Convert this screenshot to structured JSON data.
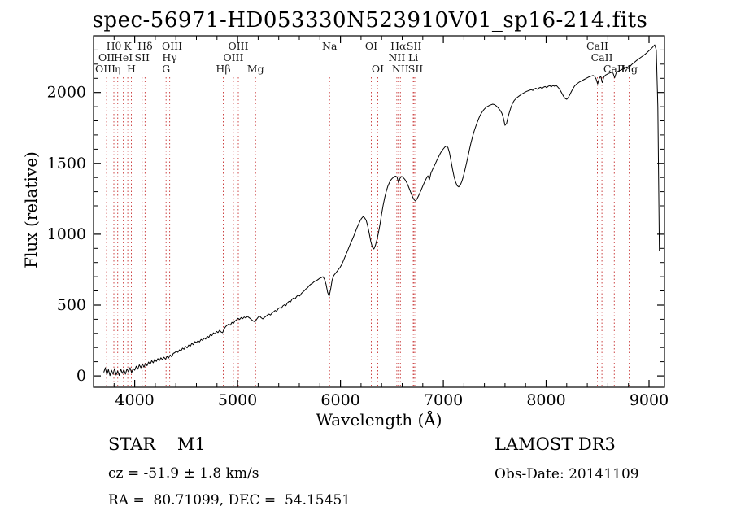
{
  "chart_data": {
    "type": "line",
    "title": "spec-56971-HD053330N523910V01_sp16-214.fits",
    "xlabel": "Wavelength (Å)",
    "ylabel": "Flux (relative)",
    "xlim": [
      3600,
      9150
    ],
    "ylim": [
      -80,
      2400
    ],
    "xticks": [
      4000,
      5000,
      6000,
      7000,
      8000,
      9000
    ],
    "yticks": [
      0,
      500,
      1000,
      1500,
      2000
    ],
    "x_minor_step": 200,
    "y_minor_step": 100,
    "grid": false,
    "line_color": "#000000",
    "marker_line_color": "#cc4444",
    "marker_label_color": "#1a1a1a",
    "marker_lines": [
      3727,
      3798,
      3835,
      3889,
      3933,
      3968,
      4072,
      4101,
      4305,
      4340,
      4363,
      4861,
      4959,
      5007,
      5175,
      5894,
      6300,
      6363,
      6548,
      6563,
      6583,
      6708,
      6716,
      6731,
      8498,
      8542,
      8662,
      8807
    ],
    "marker_labels": [
      {
        "label": "Hθ",
        "wavelength": 3798,
        "row": 0
      },
      {
        "label": "K",
        "wavelength": 3933,
        "row": 0
      },
      {
        "label": "Hδ",
        "wavelength": 4101,
        "row": 0
      },
      {
        "label": "OIII",
        "wavelength": 4363,
        "row": 0
      },
      {
        "label": "OIII",
        "wavelength": 5007,
        "row": 0
      },
      {
        "label": "Na",
        "wavelength": 5894,
        "row": 0
      },
      {
        "label": "OI",
        "wavelength": 6300,
        "row": 0
      },
      {
        "label": "Hα",
        "wavelength": 6563,
        "row": 0
      },
      {
        "label": "SII",
        "wavelength": 6716,
        "row": 0
      },
      {
        "label": "CaII",
        "wavelength": 8498,
        "row": 0
      },
      {
        "label": "OII",
        "wavelength": 3727,
        "row": 1
      },
      {
        "label": "HeI",
        "wavelength": 3889,
        "row": 1
      },
      {
        "label": "SII",
        "wavelength": 4072,
        "row": 1
      },
      {
        "label": "Hγ",
        "wavelength": 4340,
        "row": 1
      },
      {
        "label": "OIII",
        "wavelength": 4959,
        "row": 1
      },
      {
        "label": "NII",
        "wavelength": 6548,
        "row": 1
      },
      {
        "label": "Li",
        "wavelength": 6708,
        "row": 1
      },
      {
        "label": "CaII",
        "wavelength": 8542,
        "row": 1
      },
      {
        "label": "OIII",
        "wavelength": 3715,
        "row": 2
      },
      {
        "label": "η",
        "wavelength": 3835,
        "row": 2
      },
      {
        "label": "H",
        "wavelength": 3968,
        "row": 2
      },
      {
        "label": "G",
        "wavelength": 4305,
        "row": 2
      },
      {
        "label": "Hβ",
        "wavelength": 4861,
        "row": 2
      },
      {
        "label": "Mg",
        "wavelength": 5175,
        "row": 2
      },
      {
        "label": "OI",
        "wavelength": 6363,
        "row": 2
      },
      {
        "label": "NII",
        "wavelength": 6583,
        "row": 2
      },
      {
        "label": "SII",
        "wavelength": 6731,
        "row": 2
      },
      {
        "label": "Mg",
        "wavelength": 8807,
        "row": 2
      },
      {
        "label": "CaII",
        "wavelength": 8662,
        "row": 2
      }
    ],
    "x_start": 3700,
    "x_step": 15,
    "y": [
      25,
      58,
      8,
      45,
      2,
      40,
      12,
      52,
      6,
      35,
      3,
      48,
      18,
      44,
      12,
      50,
      28,
      58,
      22,
      52,
      40,
      68,
      48,
      78,
      58,
      84,
      62,
      88,
      72,
      98,
      82,
      108,
      92,
      118,
      102,
      122,
      108,
      128,
      115,
      132,
      118,
      138,
      126,
      148,
      134,
      158,
      164,
      174,
      166,
      184,
      176,
      196,
      188,
      208,
      198,
      218,
      208,
      230,
      220,
      242,
      235,
      248,
      240,
      258,
      250,
      268,
      260,
      280,
      272,
      292,
      284,
      304,
      296,
      314,
      306,
      322,
      310,
      305,
      332,
      348,
      358,
      366,
      358,
      378,
      370,
      388,
      396,
      406,
      398,
      412,
      404,
      416,
      408,
      420,
      412,
      404,
      394,
      386,
      382,
      400,
      414,
      422,
      410,
      402,
      412,
      420,
      430,
      436,
      430,
      444,
      452,
      462,
      456,
      474,
      482,
      476,
      494,
      502,
      496,
      516,
      526,
      522,
      542,
      550,
      544,
      562,
      570,
      564,
      582,
      592,
      602,
      614,
      622,
      636,
      646,
      652,
      662,
      670,
      674,
      682,
      690,
      694,
      700,
      682,
      646,
      590,
      562,
      615,
      678,
      708,
      722,
      736,
      750,
      764,
      782,
      806,
      832,
      858,
      884,
      912,
      938,
      962,
      988,
      1016,
      1044,
      1068,
      1092,
      1112,
      1124,
      1116,
      1098,
      1058,
      1005,
      948,
      908,
      896,
      922,
      962,
      1012,
      1072,
      1142,
      1205,
      1258,
      1302,
      1338,
      1362,
      1382,
      1395,
      1404,
      1410,
      1404,
      1362,
      1396,
      1408,
      1400,
      1388,
      1370,
      1348,
      1320,
      1292,
      1266,
      1244,
      1234,
      1250,
      1272,
      1296,
      1322,
      1348,
      1372,
      1394,
      1412,
      1385,
      1432,
      1456,
      1478,
      1502,
      1526,
      1548,
      1570,
      1588,
      1602,
      1615,
      1622,
      1612,
      1575,
      1518,
      1458,
      1405,
      1368,
      1342,
      1334,
      1346,
      1372,
      1408,
      1452,
      1500,
      1550,
      1600,
      1648,
      1690,
      1728,
      1760,
      1790,
      1818,
      1842,
      1860,
      1876,
      1888,
      1898,
      1904,
      1910,
      1914,
      1918,
      1915,
      1908,
      1898,
      1886,
      1872,
      1852,
      1818,
      1768,
      1782,
      1828,
      1866,
      1900,
      1926,
      1944,
      1956,
      1966,
      1974,
      1982,
      1990,
      1996,
      2002,
      2008,
      2012,
      2016,
      2020,
      2014,
      2024,
      2030,
      2022,
      2032,
      2036,
      2028,
      2038,
      2042,
      2034,
      2044,
      2048,
      2040,
      2050,
      2044,
      2052,
      2040,
      2028,
      2012,
      1992,
      1972,
      1958,
      1952,
      1964,
      1984,
      2006,
      2026,
      2044,
      2056,
      2064,
      2072,
      2078,
      2084,
      2090,
      2096,
      2102,
      2108,
      2112,
      2116,
      2120,
      2114,
      2096,
      2060,
      2098,
      2116,
      2070,
      2108,
      2122,
      2128,
      2134,
      2138,
      2142,
      2136,
      2104,
      2138,
      2148,
      2154,
      2158,
      2164,
      2168,
      2174,
      2180,
      2170,
      2184,
      2196,
      2206,
      2214,
      2224,
      2232,
      2240,
      2248,
      2256,
      2264,
      2272,
      2282,
      2292,
      2302,
      2312,
      2324,
      2336,
      2300,
      1900,
      880
    ]
  },
  "footer": {
    "class_label": "STAR    M1",
    "cz": "cz = -51.9 ± 1.8 km/s",
    "radec": "RA =  80.71099, DEC =  54.15451",
    "survey": "LAMOST DR3",
    "obs_date": "Obs-Date: 20141109"
  }
}
